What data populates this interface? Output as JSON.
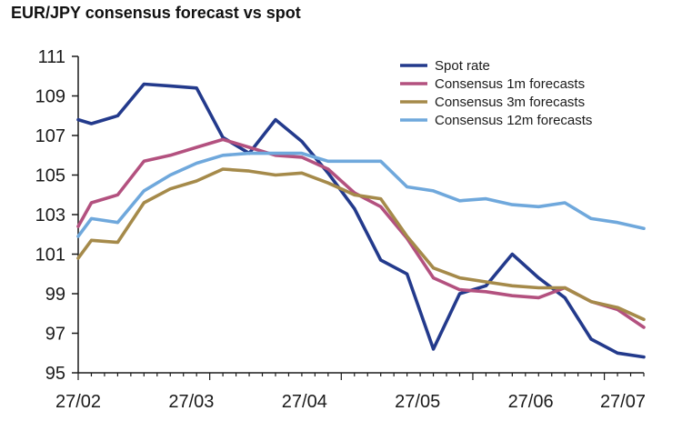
{
  "chart_data": {
    "type": "line",
    "title": "EUR/JPY consensus forecast vs spot",
    "xlabel": "",
    "ylabel": "",
    "ylim": [
      95,
      111
    ],
    "yticks": [
      95,
      97,
      99,
      101,
      103,
      105,
      107,
      109,
      111
    ],
    "x_tick_labels": [
      "27/02",
      "27/03",
      "27/04",
      "27/05",
      "27/06",
      "27/07"
    ],
    "x": [
      "27/02",
      "",
      "",
      "",
      "",
      "",
      "",
      "",
      "",
      "",
      "27/03",
      "",
      "",
      "",
      "",
      "",
      "",
      "",
      "",
      "",
      "27/04",
      "",
      "",
      "",
      "",
      "",
      "",
      "",
      "",
      "",
      "27/05",
      "",
      "",
      "",
      "",
      "",
      "",
      "",
      "",
      "",
      "27/06",
      "",
      "",
      "",
      "",
      "",
      "",
      "",
      "",
      "",
      "27/07"
    ],
    "grid": false,
    "legend_position": "top-right",
    "series": [
      {
        "name": "Spot rate",
        "color": "#233a8c",
        "points": [
          [
            0,
            107.8
          ],
          [
            1,
            107.6
          ],
          [
            3,
            108.0
          ],
          [
            5,
            109.6
          ],
          [
            7,
            109.5
          ],
          [
            9,
            109.4
          ],
          [
            11,
            106.9
          ],
          [
            13,
            106.1
          ],
          [
            15,
            107.8
          ],
          [
            17,
            106.7
          ],
          [
            19,
            105.1
          ],
          [
            21,
            103.3
          ],
          [
            23,
            100.7
          ],
          [
            25,
            100.0
          ],
          [
            27,
            96.2
          ],
          [
            29,
            99.0
          ],
          [
            31,
            99.4
          ],
          [
            33,
            101.0
          ],
          [
            35,
            99.8
          ],
          [
            37,
            98.8
          ],
          [
            39,
            96.7
          ],
          [
            41,
            96.0
          ],
          [
            43,
            95.8
          ]
        ]
      },
      {
        "name": "Consensus 1m forecasts",
        "color": "#b3517f",
        "points": [
          [
            0,
            102.4
          ],
          [
            1,
            103.6
          ],
          [
            3,
            104.0
          ],
          [
            5,
            105.7
          ],
          [
            7,
            106.0
          ],
          [
            9,
            106.4
          ],
          [
            11,
            106.8
          ],
          [
            13,
            106.4
          ],
          [
            15,
            106.0
          ],
          [
            17,
            105.9
          ],
          [
            19,
            105.3
          ],
          [
            21,
            104.1
          ],
          [
            23,
            103.4
          ],
          [
            25,
            101.8
          ],
          [
            27,
            99.8
          ],
          [
            29,
            99.2
          ],
          [
            31,
            99.1
          ],
          [
            33,
            98.9
          ],
          [
            35,
            98.8
          ],
          [
            37,
            99.3
          ],
          [
            39,
            98.6
          ],
          [
            41,
            98.2
          ],
          [
            43,
            97.3
          ]
        ]
      },
      {
        "name": "Consensus 3m forecasts",
        "color": "#a58a4a",
        "points": [
          [
            0,
            100.8
          ],
          [
            1,
            101.7
          ],
          [
            3,
            101.6
          ],
          [
            5,
            103.6
          ],
          [
            7,
            104.3
          ],
          [
            9,
            104.7
          ],
          [
            11,
            105.3
          ],
          [
            13,
            105.2
          ],
          [
            15,
            105.0
          ],
          [
            17,
            105.1
          ],
          [
            19,
            104.6
          ],
          [
            21,
            104.0
          ],
          [
            23,
            103.8
          ],
          [
            25,
            101.9
          ],
          [
            27,
            100.3
          ],
          [
            29,
            99.8
          ],
          [
            31,
            99.6
          ],
          [
            33,
            99.4
          ],
          [
            35,
            99.3
          ],
          [
            37,
            99.3
          ],
          [
            39,
            98.6
          ],
          [
            41,
            98.3
          ],
          [
            43,
            97.7
          ]
        ]
      },
      {
        "name": "Consensus 12m forecasts",
        "color": "#6fa8dc",
        "points": [
          [
            0,
            101.9
          ],
          [
            1,
            102.8
          ],
          [
            3,
            102.6
          ],
          [
            5,
            104.2
          ],
          [
            7,
            105.0
          ],
          [
            9,
            105.6
          ],
          [
            11,
            106.0
          ],
          [
            13,
            106.1
          ],
          [
            15,
            106.1
          ],
          [
            17,
            106.1
          ],
          [
            19,
            105.7
          ],
          [
            21,
            105.7
          ],
          [
            23,
            105.7
          ],
          [
            25,
            104.4
          ],
          [
            27,
            104.2
          ],
          [
            29,
            103.7
          ],
          [
            31,
            103.8
          ],
          [
            33,
            103.5
          ],
          [
            35,
            103.4
          ],
          [
            37,
            103.6
          ],
          [
            39,
            102.8
          ],
          [
            41,
            102.6
          ],
          [
            43,
            102.3
          ]
        ]
      }
    ]
  }
}
